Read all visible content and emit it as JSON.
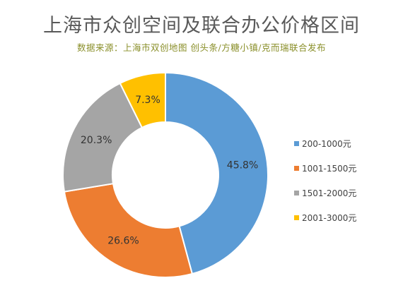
{
  "title": "上海市众创空间及联合办公价格区间",
  "subtitle": "数据来源：上海市双创地图  创头条/方糖小镇/克而瑞联合发布",
  "chart_data": {
    "type": "pie",
    "subtype": "donut",
    "categories": [
      "200-1000元",
      "1001-1500元",
      "1501-2000元",
      "2001-3000元"
    ],
    "values": [
      45.8,
      26.6,
      20.3,
      7.3
    ],
    "data_labels": [
      "45.8%",
      "26.6%",
      "20.3%",
      "7.3%"
    ],
    "colors": [
      "#5b9bd5",
      "#ed7d31",
      "#a5a5a5",
      "#ffc000"
    ],
    "legend_position": "right"
  }
}
